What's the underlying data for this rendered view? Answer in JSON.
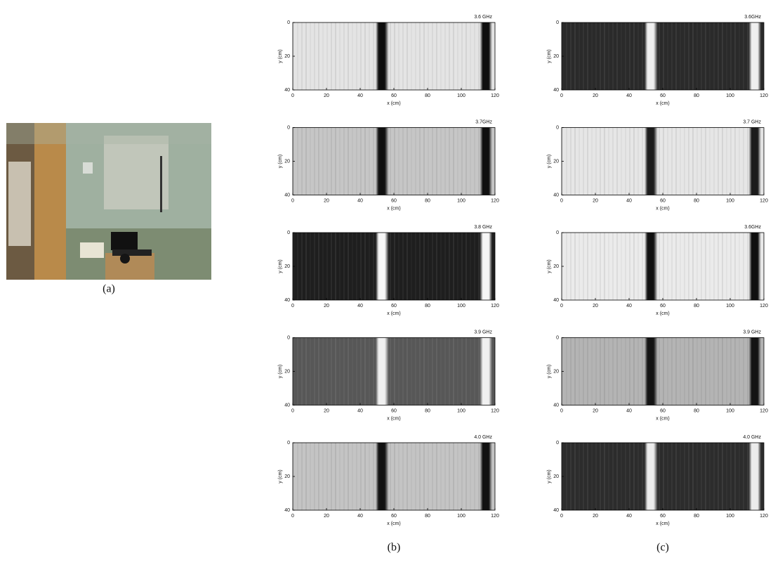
{
  "captions": {
    "a": "(a)",
    "b": "(b)",
    "c": "(c)"
  },
  "axes": {
    "xlabel": "x (cm)",
    "ylabel": "y (cm)",
    "xticks": [
      0,
      20,
      40,
      60,
      80,
      100,
      120
    ],
    "yticks": [
      0,
      20,
      40
    ]
  },
  "panels": {
    "b": [
      "3.6 GHz",
      "3.7GHz",
      "3.8 GHz",
      "3.9 GHz",
      "4.0 GHz"
    ],
    "c": [
      "3.6GHz",
      "3.7 GHz",
      "3.6GHz",
      "3.9 GHz",
      "4.0 GHz"
    ]
  }
}
